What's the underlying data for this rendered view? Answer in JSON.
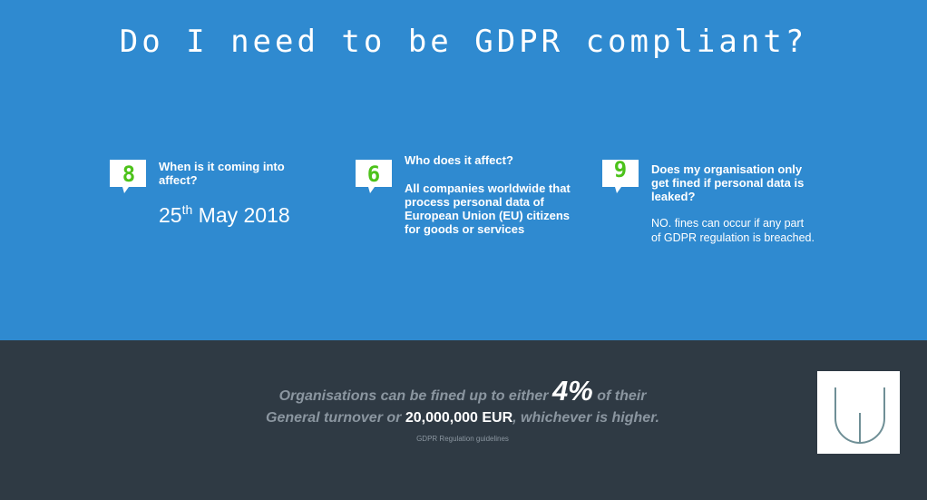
{
  "title": "Do I need to be GDPR compliant?",
  "colors": {
    "top_bg": "#2f8ad0",
    "bottom_bg": "#2f3a44",
    "digit": "#4cc21a",
    "muted": "#8b96a0"
  },
  "cards": [
    {
      "digit": "8",
      "icon": "speech-bubble-icon",
      "question": "When is it coming into affect?",
      "date_day": "25",
      "date_suffix": "th",
      "date_rest": " May 2018"
    },
    {
      "digit": "6",
      "icon": "speech-bubble-icon",
      "question": "Who does it affect?",
      "answer": "All companies worldwide that process personal data of European Union (EU) citizens for goods or services"
    },
    {
      "digit": "9",
      "icon": "speech-bubble-icon",
      "question": "Does my organisation only get fined if personal data is leaked?",
      "answer": "NO. fines can occur if any part of GDPR regulation is breached."
    }
  ],
  "footer": {
    "line1_a": "Organisations  can be fined  up to either ",
    "line1_big": "4%",
    "line1_b": "  of their",
    "line2_a": "General turnover  or ",
    "line2_hi": "20,000,000  EUR",
    "line2_b": ", whichever  is higher.",
    "source": "GDPR Regulation guidelines",
    "logo_icon": "u-logo-icon"
  }
}
